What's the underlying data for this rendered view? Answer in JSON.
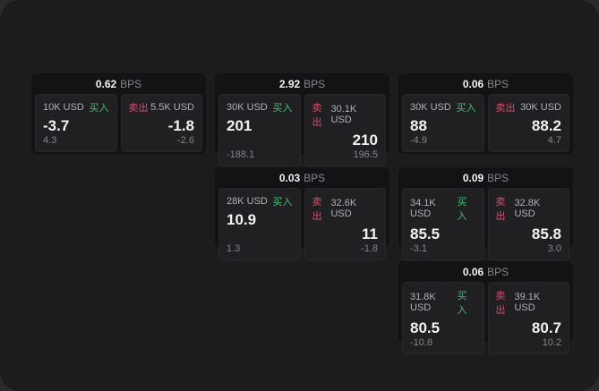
{
  "labels": {
    "bps_unit": "BPS",
    "buy": "买入",
    "sell": "卖出"
  },
  "colors": {
    "backdrop": "#2a2a2d",
    "canvas": "#1c1c1e",
    "card": "#131315",
    "panel": "#202023",
    "buy": "#3cc06d",
    "sell": "#dd4a6b",
    "text_primary": "#f2f2f3",
    "text_secondary": "#b0b0b5",
    "text_dim": "#85858a"
  },
  "cards": [
    {
      "bps": "0.62",
      "buy": {
        "amount": "10K USD",
        "price": "-3.7",
        "change": "4.3"
      },
      "sell": {
        "amount": "5.5K USD",
        "price": "-1.8",
        "change": "-2.6"
      }
    },
    {
      "bps": "2.92",
      "buy": {
        "amount": "30K USD",
        "price": "201",
        "change": "-188.1"
      },
      "sell": {
        "amount": "30.1K USD",
        "price": "210",
        "change": "196.5"
      }
    },
    {
      "bps": "0.06",
      "buy": {
        "amount": "30K USD",
        "price": "88",
        "change": "-4.9"
      },
      "sell": {
        "amount": "30K USD",
        "price": "88.2",
        "change": "4.7"
      }
    },
    {
      "bps": "0.03",
      "buy": {
        "amount": "28K USD",
        "price": "10.9",
        "change": "1.3"
      },
      "sell": {
        "amount": "32.6K USD",
        "price": "11",
        "change": "-1.8"
      }
    },
    {
      "bps": "0.09",
      "buy": {
        "amount": "34.1K USD",
        "price": "85.5",
        "change": "-3.1"
      },
      "sell": {
        "amount": "32.8K USD",
        "price": "85.8",
        "change": "3.0"
      }
    },
    {
      "bps": "0.06",
      "buy": {
        "amount": "31.8K USD",
        "price": "80.5",
        "change": "-10.8"
      },
      "sell": {
        "amount": "39.1K USD",
        "price": "80.7",
        "change": "10.2"
      }
    }
  ]
}
